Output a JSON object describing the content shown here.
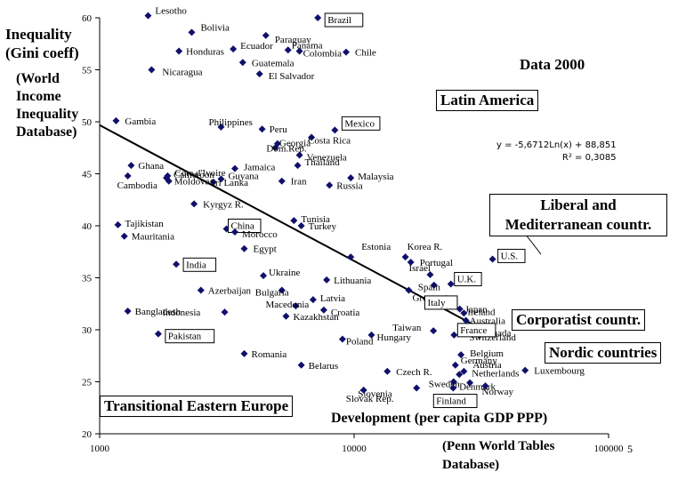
{
  "chart_data": {
    "type": "scatter",
    "title": "Data 2000",
    "xlabel": "Development (per capita GDP PPP)",
    "x_source": "(Penn World Tables Database)",
    "ylabel": "Inequality (Gini coeff)",
    "y_source": "(World Income Inequality Database)",
    "x_scale": "log",
    "xlim": [
      1000,
      100000
    ],
    "ylim": [
      20,
      60
    ],
    "x_ticks": [
      {
        "value": 1000,
        "label": "1000"
      },
      {
        "value": 10000,
        "label": "10000"
      },
      {
        "value": 100000,
        "label": "100000"
      }
    ],
    "y_ticks": [
      {
        "value": 20,
        "label": "20"
      },
      {
        "value": 25,
        "label": "25"
      },
      {
        "value": 30,
        "label": "30"
      },
      {
        "value": 35,
        "label": "35"
      },
      {
        "value": 40,
        "label": "40"
      },
      {
        "value": 45,
        "label": "45"
      },
      {
        "value": 50,
        "label": "50"
      },
      {
        "value": 55,
        "label": "55"
      },
      {
        "value": 60,
        "label": "60"
      }
    ],
    "points": [
      {
        "name": "Lesotho",
        "x": 1550,
        "y": 60.2
      },
      {
        "name": "Brazil",
        "x": 7200,
        "y": 60.0,
        "boxed": true
      },
      {
        "name": "Bolivia",
        "x": 2300,
        "y": 58.6
      },
      {
        "name": "Paraguay",
        "x": 4500,
        "y": 58.3
      },
      {
        "name": "Honduras",
        "x": 2050,
        "y": 56.8
      },
      {
        "name": "Ecuador",
        "x": 3350,
        "y": 57.0
      },
      {
        "name": "Panama",
        "x": 5500,
        "y": 56.9
      },
      {
        "name": "Colombia",
        "x": 6100,
        "y": 56.8
      },
      {
        "name": "Chile",
        "x": 9300,
        "y": 56.7
      },
      {
        "name": "Guatemala",
        "x": 3650,
        "y": 55.7
      },
      {
        "name": "El Salvador",
        "x": 4250,
        "y": 54.6
      },
      {
        "name": "Nicaragua",
        "x": 1600,
        "y": 55.0
      },
      {
        "name": "Gambia",
        "x": 1160,
        "y": 50.1
      },
      {
        "name": "Philippines",
        "x": 3000,
        "y": 49.5
      },
      {
        "name": "Peru",
        "x": 4350,
        "y": 49.3
      },
      {
        "name": "Mexico",
        "x": 8400,
        "y": 49.2,
        "boxed": true
      },
      {
        "name": "Costa Rica",
        "x": 6800,
        "y": 48.5
      },
      {
        "name": "Georgia",
        "x": 5000,
        "y": 47.9
      },
      {
        "name": "Dom.Rep.",
        "x": 4900,
        "y": 47.5
      },
      {
        "name": "Venezuela",
        "x": 6100,
        "y": 46.8
      },
      {
        "name": "Thailand",
        "x": 6000,
        "y": 45.8
      },
      {
        "name": "Ghana",
        "x": 1330,
        "y": 45.8
      },
      {
        "name": "Cambodia",
        "x": 1290,
        "y": 44.8
      },
      {
        "name": "Cote d'Ivoire",
        "x": 1850,
        "y": 44.8
      },
      {
        "name": "Jamaica",
        "x": 3400,
        "y": 45.5
      },
      {
        "name": "Cameroon",
        "x": 1830,
        "y": 44.6
      },
      {
        "name": "Guyana",
        "x": 3000,
        "y": 44.5
      },
      {
        "name": "Moldova",
        "x": 1870,
        "y": 44.3
      },
      {
        "name": "Sri Lanka",
        "x": 2800,
        "y": 44.2
      },
      {
        "name": "Iran",
        "x": 5200,
        "y": 44.3
      },
      {
        "name": "Malaysia",
        "x": 9700,
        "y": 44.6
      },
      {
        "name": "Russia",
        "x": 8000,
        "y": 43.9
      },
      {
        "name": "Kyrgyz R.",
        "x": 2350,
        "y": 42.1
      },
      {
        "name": "Tajikistan",
        "x": 1180,
        "y": 40.1
      },
      {
        "name": "Mauritania",
        "x": 1250,
        "y": 39.0
      },
      {
        "name": "China",
        "x": 3150,
        "y": 39.7,
        "boxed": true
      },
      {
        "name": "Tunisia",
        "x": 5800,
        "y": 40.5
      },
      {
        "name": "Turkey",
        "x": 6200,
        "y": 40.0
      },
      {
        "name": "Morocco",
        "x": 3400,
        "y": 39.4
      },
      {
        "name": "Egypt",
        "x": 3700,
        "y": 37.8
      },
      {
        "name": "Estonia",
        "x": 9700,
        "y": 37.0
      },
      {
        "name": "Korea R.",
        "x": 15900,
        "y": 37.0
      },
      {
        "name": "Portugal",
        "x": 16700,
        "y": 36.5
      },
      {
        "name": "U.S.",
        "x": 35000,
        "y": 36.8,
        "boxed": true
      },
      {
        "name": "India",
        "x": 2000,
        "y": 36.3,
        "boxed": true
      },
      {
        "name": "Ukraine",
        "x": 4400,
        "y": 35.2
      },
      {
        "name": "Lithuania",
        "x": 7800,
        "y": 34.8
      },
      {
        "name": "Israel",
        "x": 19900,
        "y": 35.3
      },
      {
        "name": "Spain",
        "x": 20600,
        "y": 34.3
      },
      {
        "name": "U.K.",
        "x": 24000,
        "y": 34.4,
        "boxed": true
      },
      {
        "name": "Bulgaria",
        "x": 5200,
        "y": 33.8
      },
      {
        "name": "Azerbaijan",
        "x": 2500,
        "y": 33.8
      },
      {
        "name": "Latvia",
        "x": 6900,
        "y": 32.9
      },
      {
        "name": "Greece",
        "x": 16400,
        "y": 33.8
      },
      {
        "name": "Italy",
        "x": 23000,
        "y": 33.0,
        "boxed": true
      },
      {
        "name": "Japan",
        "x": 26000,
        "y": 32.0
      },
      {
        "name": "Macedonia",
        "x": 5900,
        "y": 32.3
      },
      {
        "name": "Croatia",
        "x": 7600,
        "y": 31.9
      },
      {
        "name": "Kazakhstan",
        "x": 5400,
        "y": 31.3
      },
      {
        "name": "Ireland",
        "x": 27000,
        "y": 31.6
      },
      {
        "name": "Bangladesh",
        "x": 1290,
        "y": 31.8
      },
      {
        "name": "Indonesia",
        "x": 3100,
        "y": 31.7
      },
      {
        "name": "Australia",
        "x": 27500,
        "y": 30.9
      },
      {
        "name": "Taiwan",
        "x": 20500,
        "y": 29.9
      },
      {
        "name": "Canada",
        "x": 28800,
        "y": 29.9
      },
      {
        "name": "Switzerland",
        "x": 31200,
        "y": 29.5
      },
      {
        "name": "Pakistan",
        "x": 1700,
        "y": 29.6,
        "boxed": true
      },
      {
        "name": "Hungary",
        "x": 11700,
        "y": 29.5
      },
      {
        "name": "Poland",
        "x": 9000,
        "y": 29.1
      },
      {
        "name": "France",
        "x": 24700,
        "y": 29.5,
        "boxed": true
      },
      {
        "name": "Romania",
        "x": 3700,
        "y": 27.7
      },
      {
        "name": "Belgium",
        "x": 26300,
        "y": 27.6
      },
      {
        "name": "Germany",
        "x": 25000,
        "y": 26.6
      },
      {
        "name": "Belarus",
        "x": 6200,
        "y": 26.6
      },
      {
        "name": "Austria",
        "x": 27000,
        "y": 26.0
      },
      {
        "name": "Luxembourg",
        "x": 47000,
        "y": 26.1
      },
      {
        "name": "Czech R.",
        "x": 13500,
        "y": 26.0
      },
      {
        "name": "Netherlands",
        "x": 25900,
        "y": 25.7
      },
      {
        "name": "Sweden",
        "x": 24600,
        "y": 25.0
      },
      {
        "name": "Denmark",
        "x": 28500,
        "y": 24.9
      },
      {
        "name": "Slovenia",
        "x": 17600,
        "y": 24.4
      },
      {
        "name": "Norway",
        "x": 32800,
        "y": 24.6
      },
      {
        "name": "Slovak Rep.",
        "x": 10900,
        "y": 24.2
      },
      {
        "name": "Finland",
        "x": 24500,
        "y": 24.4,
        "boxed": true
      }
    ],
    "trendline": {
      "type": "log",
      "a": -5.6712,
      "b": 88.851,
      "x_range": [
        1000,
        36000
      ],
      "equation_label": "y = -5,6712Ln(x) + 88,851",
      "r2_label": "R² = 0,3085"
    },
    "groups": [
      {
        "id": "latin_america",
        "label": "Latin America"
      },
      {
        "id": "transitional",
        "label": "Transitional Eastern Europe"
      },
      {
        "id": "liberal",
        "label": "Liberal and Mediterranean countr."
      },
      {
        "id": "corporatist",
        "label": "Corporatist countr."
      },
      {
        "id": "nordic",
        "label": "Nordic countries"
      }
    ],
    "page_number": "5"
  }
}
